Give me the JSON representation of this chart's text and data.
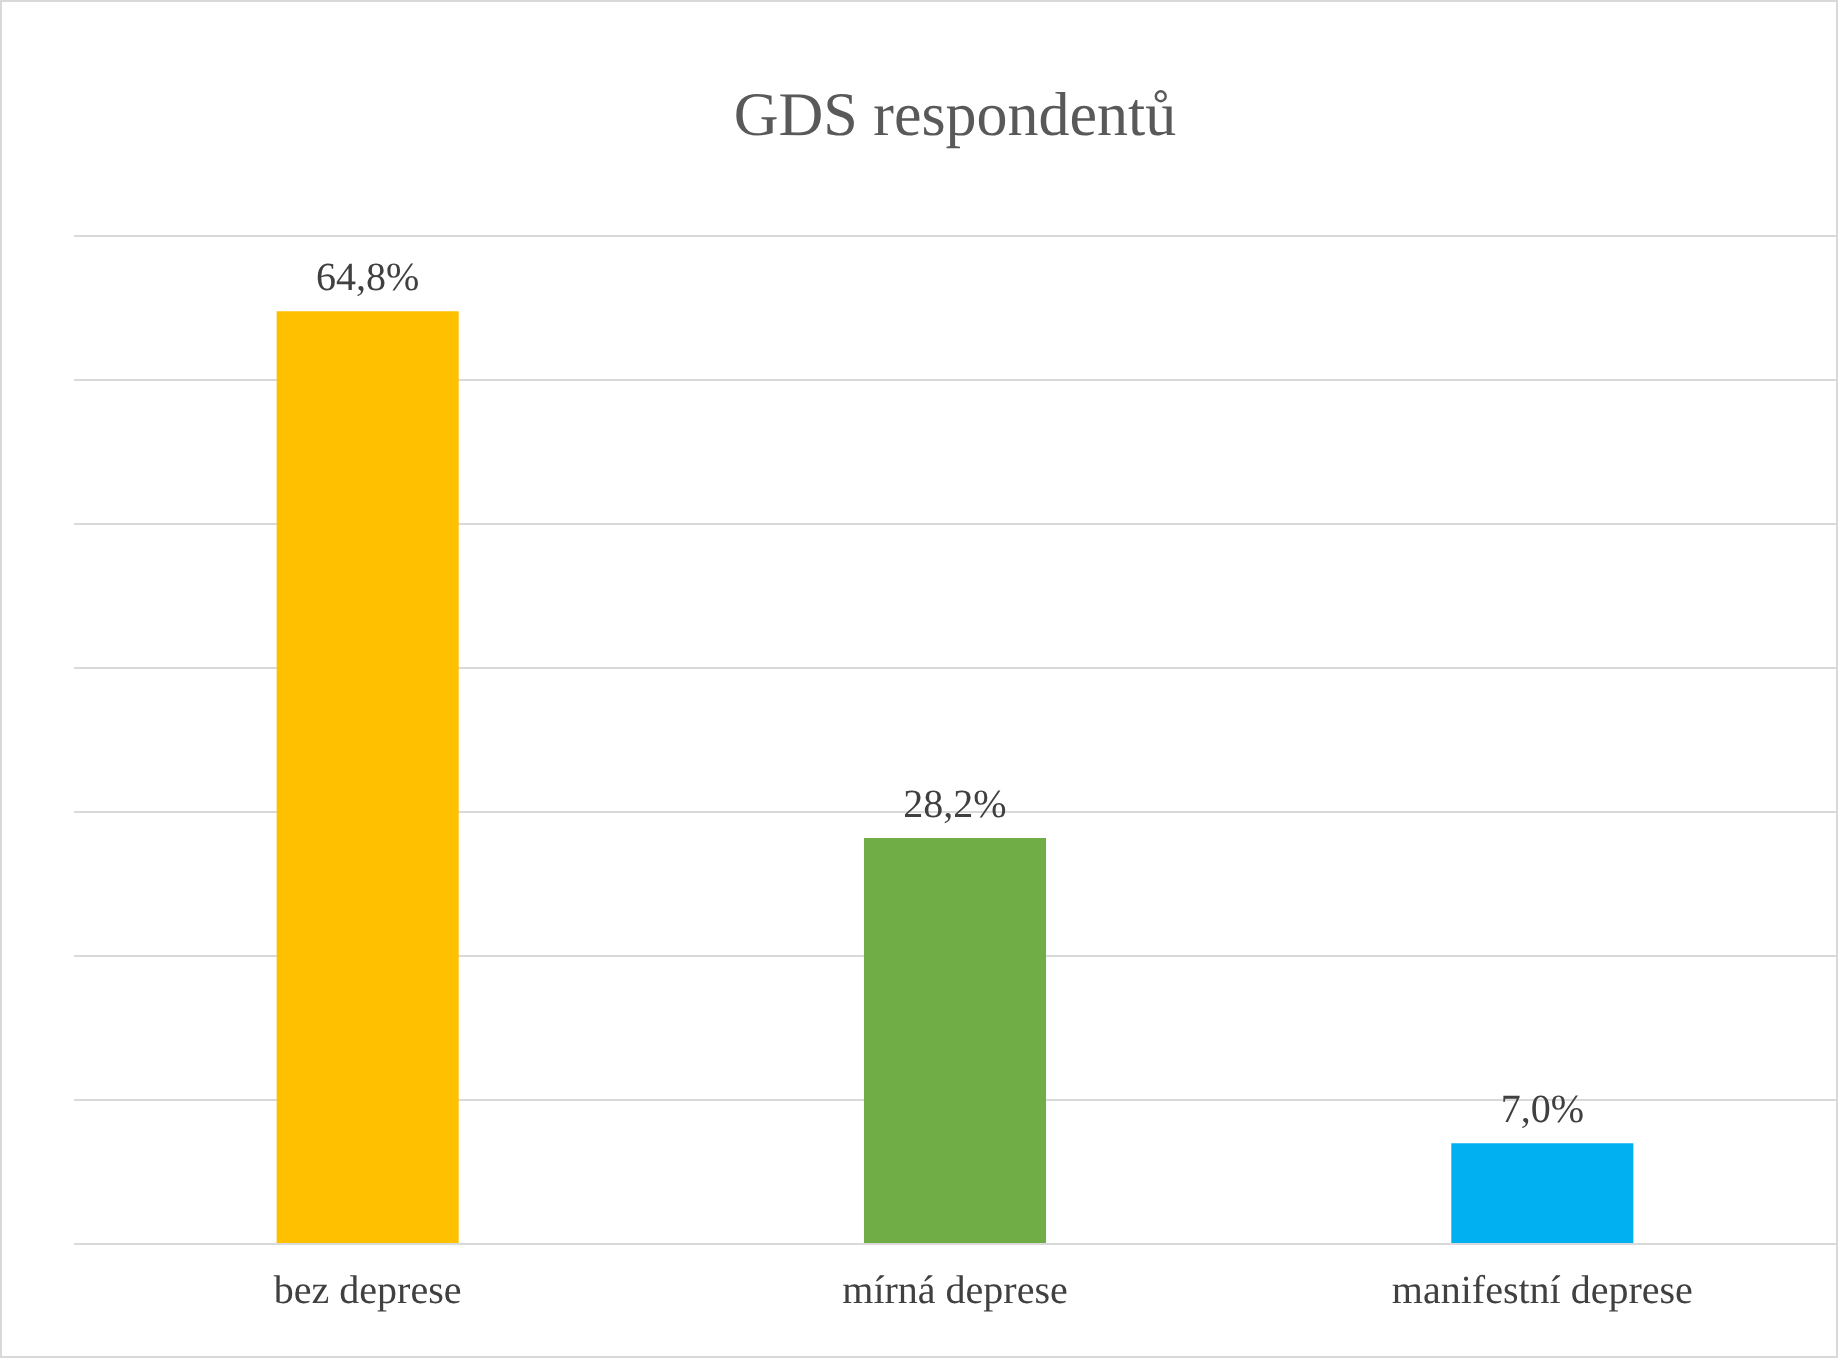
{
  "chart_data": {
    "type": "bar",
    "title": "GDS respondentů",
    "categories": [
      "bez deprese",
      "mírná deprese",
      "manifestní deprese"
    ],
    "values": [
      64.8,
      28.2,
      7.0
    ],
    "colors": [
      "#ffc000",
      "#70ad47",
      "#00b0f0"
    ],
    "value_labels": [
      "64,8%",
      "28,2%",
      "7,0%"
    ],
    "ylim": [
      0,
      70
    ],
    "yticks": [
      {
        "value": 0,
        "label": null
      },
      {
        "value": 10,
        "label": null
      },
      {
        "value": 20,
        "label": null
      },
      {
        "value": 30,
        "label": null
      },
      {
        "value": 40,
        "label": null
      },
      {
        "value": 50,
        "label": null
      },
      {
        "value": 60,
        "label": null
      },
      {
        "value": 70,
        "label": null
      }
    ],
    "grid": "y",
    "tick_labels": "x"
  }
}
